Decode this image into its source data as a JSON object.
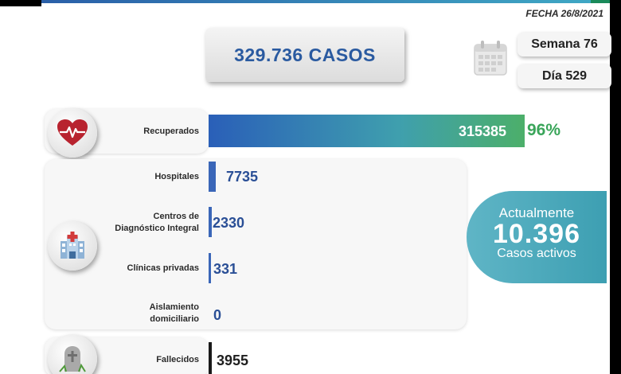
{
  "header": {
    "fecha": "FECHA 26/8/2021",
    "total_casos": "329.736 CASOS",
    "semana": "Semana 76",
    "dia": "Día 529"
  },
  "icons": {
    "calendar": "calendar-icon",
    "heart": "heart-pulse-icon",
    "hospital": "hospital-icon",
    "grave": "tombstone-icon"
  },
  "rows": {
    "recuperados": {
      "label": "Recuperados",
      "value": "315385",
      "percent": "96%",
      "fraction": 0.96
    },
    "hospitales": {
      "label": "Hospitales",
      "value": "7735"
    },
    "cdi": {
      "label_line1": "Centros de",
      "label_line2": "Diagnóstico Integral",
      "value": "2330"
    },
    "clinicas": {
      "label": "Clínicas privadas",
      "value": "331"
    },
    "aislamiento": {
      "label_line1": "Aislamiento",
      "label_line2": "domiciliario",
      "value": "0"
    },
    "fallecidos": {
      "label": "Fallecidos",
      "value": "3955"
    }
  },
  "activos": {
    "line1": "Actualmente",
    "number": "10.396",
    "line3": "Casos activos"
  },
  "colors": {
    "accent_blue": "#2a5aa0",
    "green": "#3aa55a",
    "teal": "#4aa9bb"
  }
}
